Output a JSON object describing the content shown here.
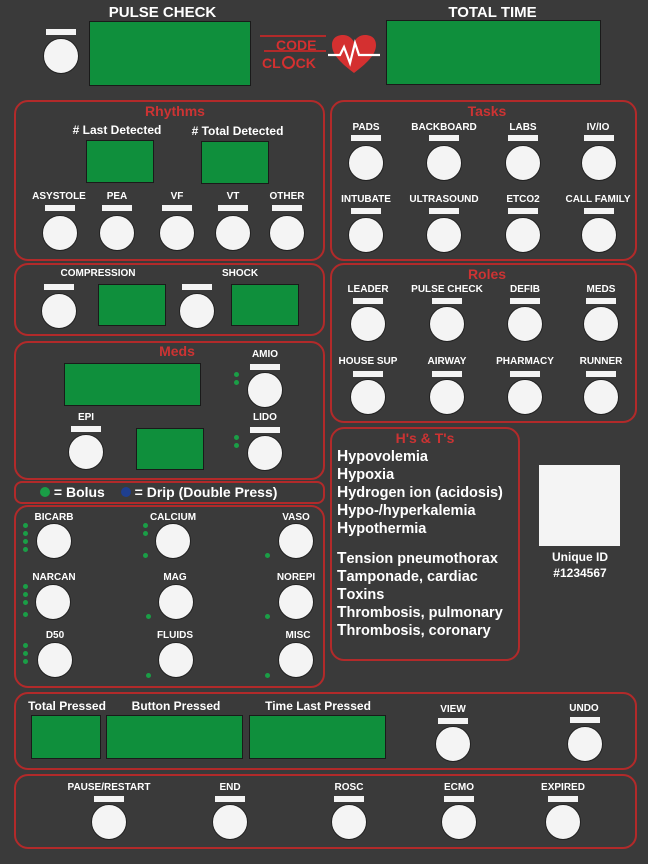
{
  "top": {
    "pulse_check": "PULSE CHECK",
    "total_time": "TOTAL TIME",
    "logo_line1": "CODE",
    "logo_line2": "CL",
    "logo_line2b": "CK"
  },
  "rhythms": {
    "title": "Rhythms",
    "last_detected": "# Last Detected",
    "total_detected": "# Total Detected",
    "buttons": [
      "ASYSTOLE",
      "PEA",
      "VF",
      "VT",
      "OTHER"
    ]
  },
  "tasks": {
    "title": "Tasks",
    "buttons": [
      "PADS",
      "BACKBOARD",
      "LABS",
      "IV/IO",
      "INTUBATE",
      "ULTRASOUND",
      "ETCO2",
      "CALL FAMILY"
    ]
  },
  "cs": {
    "compression": "COMPRESSION",
    "shock": "SHOCK"
  },
  "roles": {
    "title": "Roles",
    "buttons": [
      "LEADER",
      "PULSE CHECK",
      "DEFIB",
      "MEDS",
      "HOUSE SUP",
      "AIRWAY",
      "PHARMACY",
      "RUNNER"
    ]
  },
  "meds": {
    "title": "Meds",
    "amio": "AMIO",
    "epi": "EPI",
    "lido": "LIDO",
    "legend": {
      "bolus": "= Bolus",
      "drip": "= Drip (Double Press)",
      "bolus_color": "#1a9e46",
      "drip_color": "#1f3f8f"
    },
    "buttons": [
      "BICARB",
      "CALCIUM",
      "VASO",
      "NARCAN",
      "MAG",
      "NOREPI",
      "D50",
      "FLUIDS",
      "MISC"
    ]
  },
  "hts": {
    "title": "H's & T's",
    "h_items": [
      {
        "first": "H",
        "rest": "ypovolemia"
      },
      {
        "first": "H",
        "rest": "ypoxia"
      },
      {
        "first": "H",
        "rest": "ydrogen ion (acidosis)"
      },
      {
        "first": "H",
        "rest": "ypo-/hyperkalemia"
      },
      {
        "first": "H",
        "rest": "ypothermia"
      }
    ],
    "t_items": [
      {
        "first": "T",
        "rest": "ension pneumothorax"
      },
      {
        "first": "T",
        "rest": "amponade, cardiac"
      },
      {
        "first": "T",
        "rest": "oxins"
      },
      {
        "first": "T",
        "rest": "hrombosis, pulmonary"
      },
      {
        "first": "T",
        "rest": "hrombosis, coronary"
      }
    ]
  },
  "unique": {
    "label": "Unique ID",
    "id": "#1234567"
  },
  "log": {
    "total_pressed": "Total Pressed",
    "button_pressed": "Button Pressed",
    "time_last_pressed": "Time Last Pressed",
    "view": "VIEW",
    "undo": "UNDO"
  },
  "bottom": {
    "buttons": [
      "PAUSE/RESTART",
      "END",
      "ROSC",
      "ECMO",
      "EXPIRED"
    ]
  },
  "colors": {
    "accent": "#b22a2a",
    "screen": "#0f8f3c",
    "background": "#3a3a3a"
  }
}
